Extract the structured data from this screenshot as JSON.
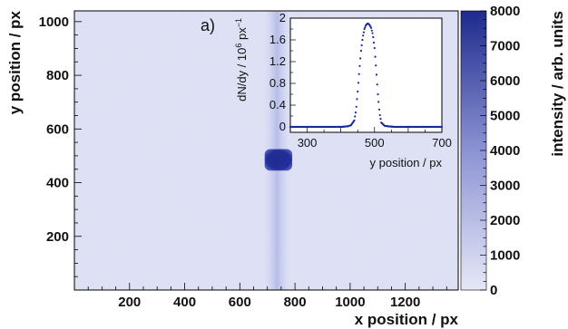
{
  "chart_data": [
    {
      "type": "heatmap",
      "panel_label": "a)",
      "xlabel": "x position / px",
      "ylabel": "y position / px",
      "xlim": [
        0,
        1392
      ],
      "ylim": [
        0,
        1040
      ],
      "x_ticks": [
        200,
        400,
        600,
        800,
        1000,
        1200
      ],
      "y_ticks": [
        200,
        400,
        600,
        800,
        1000
      ],
      "background_intensity": 500,
      "vertical_band": {
        "x_center": 735,
        "x_halfwidth": 45,
        "intensity": 1200
      },
      "spot": {
        "x_range": [
          690,
          790
        ],
        "y_range": [
          445,
          525
        ],
        "peak_intensity": 8000
      },
      "colorbar": {
        "label": "intensity / arb. units",
        "range": [
          0,
          8000
        ],
        "ticks": [
          0,
          1000,
          2000,
          3000,
          4000,
          5000,
          6000,
          7000,
          8000
        ],
        "color_low": "#e6e8f7",
        "color_high": "#1e2a8c"
      },
      "grid": false,
      "legend": "none"
    },
    {
      "type": "scatter",
      "placement": "inset, top-right of main panel",
      "xlabel": "y position / px",
      "ylabel": "dN/dy / 10^6 px^-1",
      "xlim": [
        250,
        700
      ],
      "ylim": [
        -0.1,
        2.0
      ],
      "x_ticks": [
        300,
        500,
        700
      ],
      "y_ticks": [
        0,
        0.4,
        0.8,
        1.2,
        1.6,
        2
      ],
      "x_tick_labels": [
        "300",
        "500",
        "700"
      ],
      "y_tick_labels": [
        "0",
        "0.4",
        "0.8",
        "1.2",
        "1.6",
        "2"
      ],
      "color": "#1a2a9a",
      "series": [
        {
          "x": [
            250,
            300,
            350,
            400,
            420,
            430,
            440,
            445,
            450,
            455,
            460,
            465,
            470,
            475,
            480,
            485,
            490,
            495,
            500,
            505,
            510,
            515,
            520,
            530,
            540,
            560,
            600,
            650,
            700
          ],
          "values": [
            0.0,
            0.0,
            0.0,
            0.0,
            0.01,
            0.03,
            0.12,
            0.3,
            0.65,
            1.05,
            1.4,
            1.65,
            1.8,
            1.88,
            1.9,
            1.88,
            1.82,
            1.7,
            1.45,
            1.05,
            0.6,
            0.25,
            0.08,
            0.02,
            0.01,
            0.0,
            0.0,
            0.0,
            0.0
          ]
        }
      ]
    }
  ]
}
